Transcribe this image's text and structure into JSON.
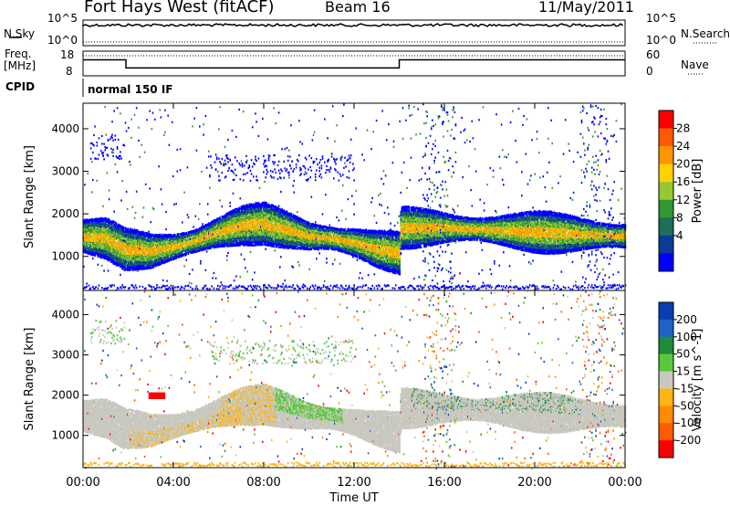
{
  "header": {
    "title": "Fort Hays West (fitACF)",
    "beam": "Beam 16",
    "date": "11/May/2011"
  },
  "chart_data": [
    {
      "type": "line",
      "panel": "noise",
      "left_label": "N.Sky",
      "right_label": "N.Search",
      "left_ticks": [
        "10^5",
        "10^0"
      ],
      "right_ticks": [
        "10^5",
        "10^0"
      ],
      "scale": "log"
    },
    {
      "type": "line",
      "panel": "frequency",
      "left_label_line1": "Freq.",
      "left_label_line2": "[MHz]",
      "right_label": "Nave",
      "left_ticks": [
        "18",
        "8"
      ],
      "right_ticks": [
        "60",
        "0"
      ],
      "series": [
        {
          "name": "Freq.",
          "x": [
            0,
            1.9,
            1.9,
            14.0,
            14.0,
            24
          ],
          "values": [
            14.5,
            14.5,
            11.2,
            11.2,
            14.5,
            14.5
          ]
        }
      ]
    },
    {
      "type": "heatmap",
      "panel": "power",
      "cpid_label": "CPID",
      "cpid_text": "normal 150 IF",
      "ylabel": "Slant Range [km]",
      "yticks": [
        "4000",
        "3000",
        "2000",
        "1000"
      ],
      "ylim": [
        200,
        4600
      ],
      "colorbar_label": "Power [dB]",
      "colorbar_ticks": [
        "28",
        "24",
        "20",
        "16",
        "12",
        "8",
        "4"
      ],
      "colorbar_colors": [
        "#ff0000",
        "#ff5a00",
        "#ff9600",
        "#ffd200",
        "#96c832",
        "#329632",
        "#1e6e5a",
        "#0a3c96",
        "#0000ff"
      ],
      "band_center_km": [
        [
          0,
          1500
        ],
        [
          1,
          1450
        ],
        [
          1.8,
          1200
        ],
        [
          3,
          1150
        ],
        [
          4,
          1250
        ],
        [
          5,
          1400
        ],
        [
          6,
          1600
        ],
        [
          7,
          1750
        ],
        [
          8,
          1800
        ],
        [
          9,
          1650
        ],
        [
          10,
          1500
        ],
        [
          11,
          1450
        ],
        [
          12,
          1350
        ],
        [
          13,
          1200
        ],
        [
          14,
          1100
        ],
        [
          14.05,
          1700
        ],
        [
          16,
          1700
        ],
        [
          18,
          1650
        ],
        [
          20,
          1600
        ],
        [
          22,
          1550
        ],
        [
          24,
          1500
        ]
      ]
    },
    {
      "type": "heatmap",
      "panel": "velocity",
      "ylabel": "Slant Range [km]",
      "yticks": [
        "4000",
        "3000",
        "2000",
        "1000"
      ],
      "ylim": [
        200,
        4600
      ],
      "xticks": [
        "00:00",
        "04:00",
        "08:00",
        "12:00",
        "16:00",
        "20:00",
        "00:00"
      ],
      "xlabel": "Time UT",
      "colorbar_label": "Velocity [m s^-1]",
      "colorbar_ticks": [
        "200",
        "100",
        "50",
        "15",
        "-15",
        "-50",
        "-100",
        "-200"
      ],
      "colorbar_colors": [
        "#0a3cb4",
        "#1e64c8",
        "#1e8c3c",
        "#5ac83c",
        "#c8c8c0",
        "#ffb414",
        "#ff8c00",
        "#ff5a00",
        "#ff0000"
      ]
    }
  ]
}
